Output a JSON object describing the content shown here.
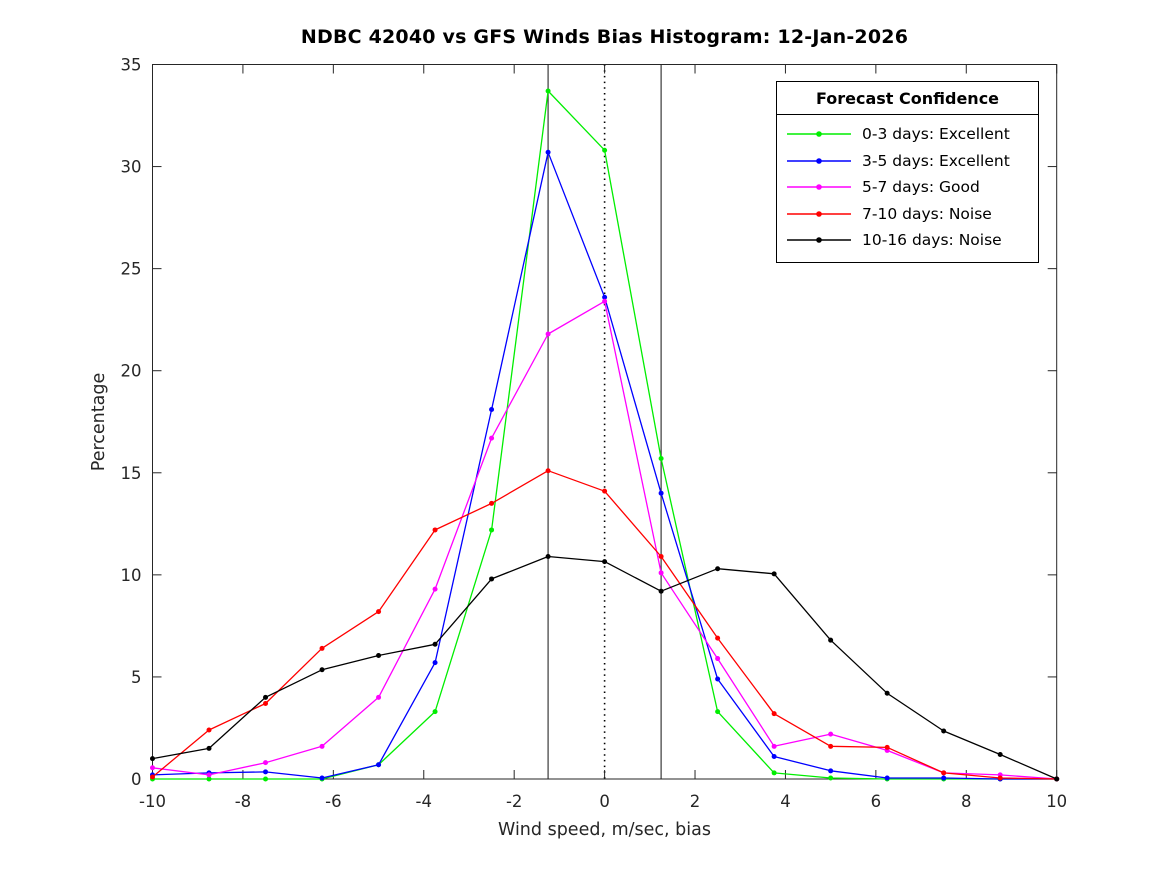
{
  "chart_data": {
    "type": "line",
    "title": "NDBC 42040 vs GFS Winds Bias Histogram: 12-Jan-2026",
    "xlabel": "Wind speed, m/sec, bias",
    "ylabel": "Percentage",
    "xlim": [
      -10,
      10
    ],
    "ylim": [
      0,
      35
    ],
    "xticks": [
      -10,
      -8,
      -6,
      -4,
      -2,
      0,
      2,
      4,
      6,
      8,
      10
    ],
    "yticks": [
      0,
      5,
      10,
      15,
      20,
      25,
      30,
      35
    ],
    "grid": false,
    "legend_title": "Forecast Confidence",
    "legend_position": "top-right-inside",
    "marker": "dot",
    "x": [
      -10,
      -8.75,
      -7.5,
      -6.25,
      -5,
      -3.75,
      -2.5,
      -1.25,
      0,
      1.25,
      2.5,
      3.75,
      5,
      6.25,
      7.5,
      8.75,
      10
    ],
    "series": [
      {
        "name": "0-3 days: Excellent",
        "color": "#00ee00",
        "values": [
          0,
          0,
          0,
          0,
          0.7,
          3.3,
          12.2,
          33.7,
          30.8,
          15.7,
          3.3,
          0.3,
          0.05,
          0,
          0,
          0,
          0
        ]
      },
      {
        "name": "3-5 days: Excellent",
        "color": "#0000ff",
        "values": [
          0.2,
          0.3,
          0.35,
          0.05,
          0.7,
          5.7,
          18.1,
          30.7,
          23.6,
          14.0,
          4.9,
          1.1,
          0.4,
          0.05,
          0.05,
          0,
          0
        ]
      },
      {
        "name": "5-7 days: Good",
        "color": "#ff00ff",
        "values": [
          0.55,
          0.2,
          0.8,
          1.6,
          4.0,
          9.3,
          16.7,
          21.8,
          23.4,
          10.1,
          5.9,
          1.6,
          2.2,
          1.4,
          0.3,
          0.2,
          0
        ]
      },
      {
        "name": "7-10 days: Noise",
        "color": "#ff0000",
        "values": [
          0.1,
          2.4,
          3.7,
          6.4,
          8.2,
          12.2,
          13.5,
          15.1,
          14.1,
          10.9,
          6.9,
          3.2,
          1.6,
          1.55,
          0.3,
          0.05,
          0
        ]
      },
      {
        "name": "10-16 days: Noise",
        "color": "#000000",
        "values": [
          1.0,
          1.5,
          4.0,
          5.35,
          6.05,
          6.6,
          9.8,
          10.9,
          10.65,
          9.2,
          10.3,
          10.05,
          6.8,
          4.2,
          2.35,
          1.2,
          0
        ]
      }
    ],
    "reference_lines": [
      {
        "x": -1.25,
        "style": "solid"
      },
      {
        "x": 0,
        "style": "dotted"
      },
      {
        "x": 1.25,
        "style": "solid"
      }
    ]
  }
}
